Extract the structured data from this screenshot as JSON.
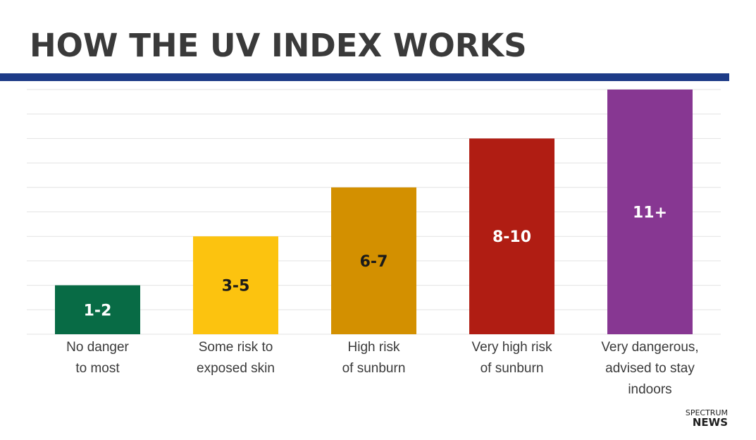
{
  "title": "HOW THE UV INDEX WORKS",
  "colors": {
    "title": "#3a3a3a",
    "rule": "#1d3b87",
    "grid": "#e3e3e3",
    "category_text": "#3a3a3a"
  },
  "chart_data": {
    "type": "bar",
    "title": "HOW THE UV INDEX WORKS",
    "xlabel": "",
    "ylabel": "",
    "ylim": [
      0,
      10
    ],
    "grid": true,
    "categories": [
      [
        "No danger",
        "to most"
      ],
      [
        "Some risk to",
        "exposed skin"
      ],
      [
        "High risk",
        "of sunburn"
      ],
      [
        "Very high risk",
        "of sunburn"
      ],
      [
        "Very dangerous,",
        "advised to stay",
        "indoors"
      ]
    ],
    "values": [
      2,
      4,
      6,
      8,
      10
    ],
    "data_labels": [
      "1-2",
      "3-5",
      "6-7",
      "8-10",
      "11+"
    ],
    "bar_colors": [
      "#086b45",
      "#fcc30f",
      "#d39000",
      "#b01d13",
      "#873792"
    ],
    "label_colors": [
      "#ffffff",
      "#1a1a1a",
      "#1a1a1a",
      "#ffffff",
      "#ffffff"
    ]
  },
  "brand": {
    "top": "SPECTRUM",
    "bottom": "NEWS"
  }
}
